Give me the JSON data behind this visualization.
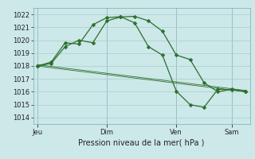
{
  "xlabel": "Pression niveau de la mer( hPa )",
  "background_color": "#cce8e8",
  "plot_bg_color": "#cce8e8",
  "grid_color": "#aacccc",
  "line_color": "#2d6e2d",
  "ylim": [
    1013.5,
    1022.5
  ],
  "yticks": [
    1014,
    1015,
    1016,
    1017,
    1018,
    1019,
    1020,
    1021,
    1022
  ],
  "xtick_labels": [
    "Jeu",
    "Dim",
    "Ven",
    "Sam"
  ],
  "xtick_positions": [
    0,
    5,
    10,
    14
  ],
  "xlim": [
    -0.3,
    15.3
  ],
  "line1_x": [
    0,
    1,
    2,
    3,
    4,
    5,
    6,
    7,
    8,
    9,
    10,
    11,
    12,
    13,
    14,
    15
  ],
  "line1_y": [
    1018.0,
    1018.2,
    1019.5,
    1020.0,
    1019.8,
    1021.5,
    1021.8,
    1021.85,
    1021.5,
    1020.7,
    1018.85,
    1018.5,
    1016.7,
    1016.0,
    1016.2,
    1016.0
  ],
  "line2_x": [
    0,
    1,
    2,
    3,
    4,
    5,
    6,
    7,
    8,
    9,
    10,
    11,
    12,
    13,
    14,
    15
  ],
  "line2_y": [
    1018.0,
    1018.3,
    1019.8,
    1019.7,
    1021.2,
    1021.75,
    1021.82,
    1021.35,
    1019.5,
    1018.85,
    1016.05,
    1015.0,
    1014.8,
    1016.2,
    1016.15,
    1016.05
  ],
  "line3_x": [
    0,
    15
  ],
  "line3_y": [
    1018.0,
    1016.0
  ],
  "line4_x": [
    0,
    15
  ],
  "line4_y": [
    1018.1,
    1016.1
  ],
  "marker_style": "D",
  "marker_size": 2.5,
  "linewidth": 0.9,
  "thin_linewidth": 0.6,
  "xlabel_fontsize": 7,
  "tick_fontsize": 6
}
